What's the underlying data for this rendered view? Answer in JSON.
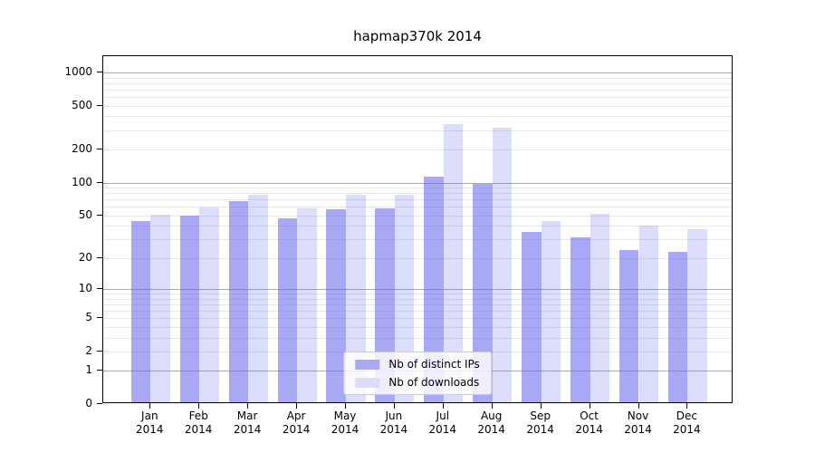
{
  "chart_data": {
    "type": "bar",
    "title": "hapmap370k 2014",
    "categories": [
      "Jan",
      "Feb",
      "Mar",
      "Apr",
      "May",
      "Jun",
      "Jul",
      "Aug",
      "Sep",
      "Oct",
      "Nov",
      "Dec"
    ],
    "year_label": "2014",
    "series": [
      {
        "name": "Nb of distinct IPs",
        "values": [
          44,
          50,
          67,
          47,
          57,
          58,
          113,
          98,
          35,
          31,
          24,
          23
        ],
        "fill": "rgba(100,100,238,0.56)",
        "swatch": "#a9a9f4"
      },
      {
        "name": "Nb of downloads",
        "values": [
          51,
          59,
          77,
          58,
          77,
          78,
          340,
          315,
          44,
          52,
          40,
          37
        ],
        "fill": "rgba(100,100,238,0.225)",
        "swatch": "#dcdcf8"
      }
    ],
    "y_axis": {
      "scale": "log10(1+y)",
      "tick_labels": [
        1000,
        500,
        200,
        100,
        50,
        20,
        10,
        5,
        2,
        1,
        0
      ],
      "major_gridlines": [
        1,
        10,
        100,
        1000
      ],
      "minor_gridlines": [
        2,
        3,
        4,
        5,
        6,
        7,
        8,
        9,
        20,
        30,
        40,
        50,
        60,
        70,
        80,
        90,
        200,
        300,
        400,
        500,
        600,
        700,
        800,
        900
      ],
      "top_value": 1380
    },
    "legend": {
      "position": "lower center",
      "entries": [
        "Nb of distinct IPs",
        "Nb of downloads"
      ]
    },
    "colors": {
      "major_grid": "#ababab",
      "minor_grid": "#e7e7e7",
      "axis": "#000000",
      "text": "#000000",
      "background": "#ffffff"
    },
    "grid": true
  }
}
